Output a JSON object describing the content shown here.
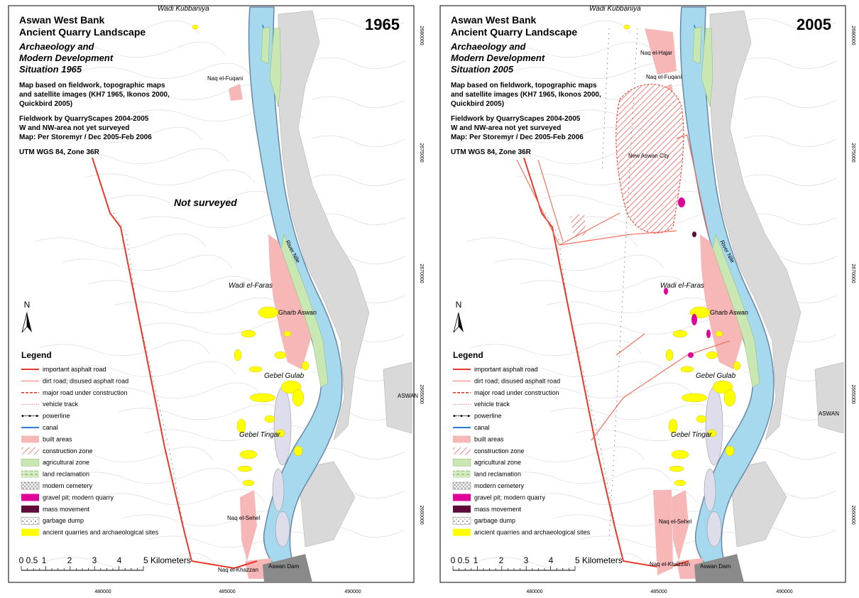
{
  "title": [
    "Aswan West Bank",
    "Ancient Quarry Landscape"
  ],
  "notes": [
    "Map based on fieldwork, topographic maps",
    "and satellite images (KH7 1965, Ikonos 2000,",
    "Quickbird 2005)",
    "Fieldwork by QuarryScapes 2004-2005",
    "W and NW-area not yet surveyed",
    "Map: Per Storemyr / Dec 2005-Feb 2006",
    "UTM WGS 84, Zone 36R"
  ],
  "legend": {
    "heading": "Legend",
    "items": [
      "important asphalt road",
      "dirt road; disused asphalt road",
      "major road under construction",
      "vehicle track",
      "powerline",
      "canal",
      "built areas",
      "construction zone",
      "agricultural zone",
      "land reclamation",
      "modern cemetery",
      "gravel pit; modern quarry",
      "mass movement",
      "garbage dump",
      "ancient quarries and archaeological sites"
    ]
  },
  "north": "N",
  "scale": [
    "0",
    "0.5",
    "1",
    "2",
    "3",
    "4",
    "5 Kilometers"
  ],
  "eastings": [
    "480000",
    "485000",
    "490000"
  ],
  "northings": [
    "2680000",
    "2675000",
    "2670000",
    "2665000",
    "2660000"
  ],
  "panels": [
    {
      "year": "1965",
      "subtitle": [
        "Archaeology and",
        "Modern Development",
        "Situation 1965"
      ],
      "places": [
        "Wadi Kubbaniya",
        "Naq el-Fuqani",
        "Not surveyed",
        "River Nile",
        "Wadi el-Faras",
        "Gharb Aswan",
        "Gebel Gulab",
        "Gebel Tingar",
        "Naq el-Sehel",
        "Naq el-Khazzan",
        "Aswan Dam",
        "ASWAN"
      ]
    },
    {
      "year": "2005",
      "subtitle": [
        "Archaeology and",
        "Modern Development",
        "Situation 2005"
      ],
      "places": [
        "Wadi Kubbaniya",
        "Naq el-Hajar",
        "Naq el-Fuqani",
        "New Aswan City",
        "River Nile",
        "Wadi el-Faras",
        "Gharb Aswan",
        "Gebel Gulab",
        "Gebel Tingar",
        "Naq el-Sehel",
        "Naq el-Khazzan",
        "Aswan Dam",
        "ASWAN"
      ]
    }
  ]
}
